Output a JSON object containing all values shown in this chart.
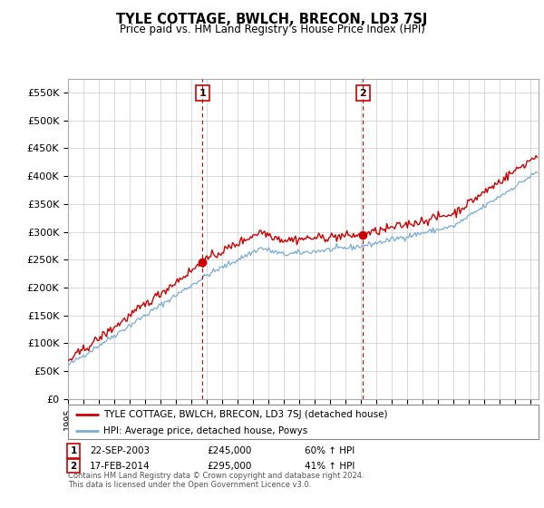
{
  "title": "TYLE COTTAGE, BWLCH, BRECON, LD3 7SJ",
  "subtitle": "Price paid vs. HM Land Registry's House Price Index (HPI)",
  "ylim": [
    0,
    575000
  ],
  "yticks": [
    0,
    50000,
    100000,
    150000,
    200000,
    250000,
    300000,
    350000,
    400000,
    450000,
    500000,
    550000
  ],
  "ytick_labels": [
    "£0",
    "£50K",
    "£100K",
    "£150K",
    "£200K",
    "£250K",
    "£300K",
    "£350K",
    "£400K",
    "£450K",
    "£500K",
    "£550K"
  ],
  "sale1_date": 2003.72,
  "sale1_price": 245000,
  "sale2_date": 2014.12,
  "sale2_price": 295000,
  "property_color": "#cc0000",
  "hpi_color": "#7aadd4",
  "vline_color": "#cc0000",
  "background_color": "#ffffff",
  "grid_color": "#cccccc",
  "legend_label1": "TYLE COTTAGE, BWLCH, BRECON, LD3 7SJ (detached house)",
  "legend_label2": "HPI: Average price, detached house, Powys",
  "table_row1": [
    "1",
    "22-SEP-2003",
    "£245,000",
    "60% ↑ HPI"
  ],
  "table_row2": [
    "2",
    "17-FEB-2014",
    "£295,000",
    "41% ↑ HPI"
  ],
  "footnote1": "Contains HM Land Registry data © Crown copyright and database right 2024.",
  "footnote2": "This data is licensed under the Open Government Licence v3.0.",
  "xmin": 1995,
  "xmax": 2025.5
}
